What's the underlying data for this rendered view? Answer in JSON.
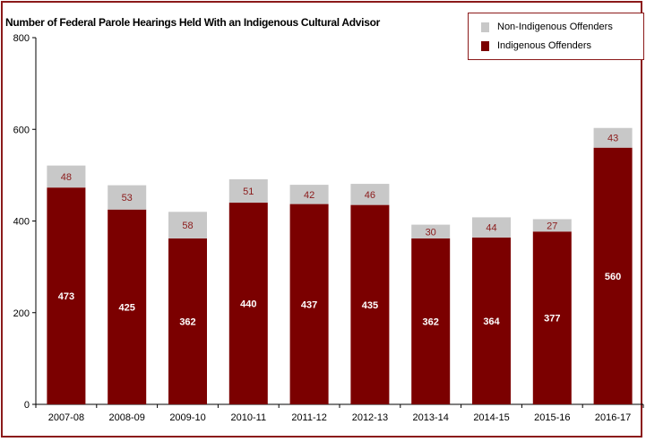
{
  "chart_data": {
    "type": "bar",
    "stacked": true,
    "title": "Number of Federal Parole Hearings Held With an Indigenous Cultural Advisor",
    "xlabel": "",
    "ylabel": "",
    "ylim": [
      0,
      800
    ],
    "yticks": [
      0,
      200,
      400,
      600,
      800
    ],
    "categories": [
      "2007-08",
      "2008-09",
      "2009-10",
      "2010-11",
      "2011-12",
      "2012-13",
      "2013-14",
      "2014-15",
      "2015-16",
      "2016-17"
    ],
    "series": [
      {
        "name": "Indigenous Offenders",
        "color": "#7b0000",
        "label_color": "#ffffff",
        "values": [
          473,
          425,
          362,
          440,
          437,
          435,
          362,
          364,
          377,
          560
        ]
      },
      {
        "name": "Non-Indigenous Offenders",
        "color": "#c8c8c8",
        "label_color": "#8b1a1a",
        "values": [
          48,
          53,
          58,
          51,
          42,
          46,
          30,
          44,
          27,
          43
        ]
      }
    ],
    "legend": [
      {
        "name": "Non-Indigenous Offenders",
        "color": "#c8c8c8"
      },
      {
        "name": "Indigenous Offenders",
        "color": "#7b0000"
      }
    ],
    "legend_position": "top-right",
    "grid": false
  }
}
